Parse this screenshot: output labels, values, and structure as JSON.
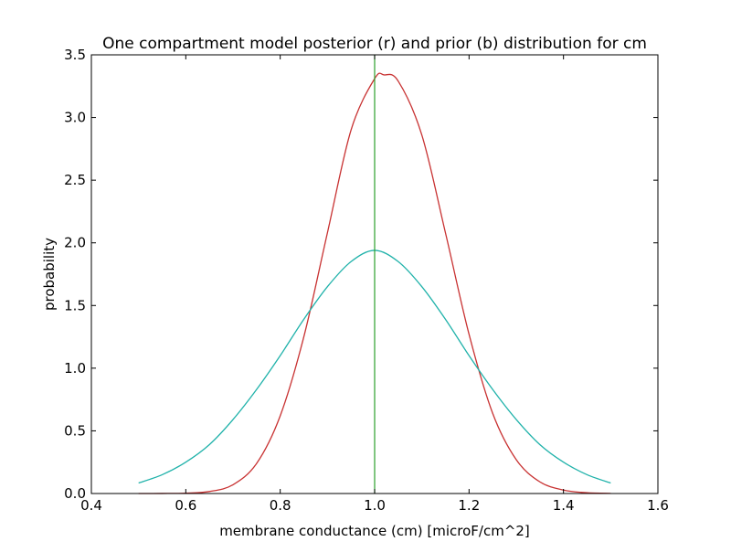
{
  "chart_data": {
    "type": "line",
    "title": "One compartment model posterior (r) and prior (b) distribution for cm",
    "xlabel": "membrane conductance (cm) [microF/cm^2]",
    "ylabel": "probability",
    "xlim": [
      0.4,
      1.6
    ],
    "ylim": [
      0.0,
      3.5
    ],
    "xticks": [
      0.4,
      0.6,
      0.8,
      1.0,
      1.2,
      1.4,
      1.6
    ],
    "xtick_labels": [
      "0.4",
      "0.6",
      "0.8",
      "1.0",
      "1.2",
      "1.4",
      "1.6"
    ],
    "yticks": [
      0.0,
      0.5,
      1.0,
      1.5,
      2.0,
      2.5,
      3.0,
      3.5
    ],
    "ytick_labels": [
      "0.0",
      "0.5",
      "1.0",
      "1.5",
      "2.0",
      "2.5",
      "3.0",
      "3.5"
    ],
    "grid": false,
    "legend": "none",
    "vline": {
      "x": 1.0,
      "color": "#2ca02c"
    },
    "series": [
      {
        "color": "#c83232",
        "x": [
          0.5,
          0.55,
          0.6,
          0.65,
          0.7,
          0.75,
          0.8,
          0.85,
          0.9,
          0.95,
          1.0,
          1.02,
          1.05,
          1.1,
          1.15,
          1.2,
          1.25,
          1.3,
          1.35,
          1.4,
          1.45,
          1.5
        ],
        "y": [
          0.0001,
          0.0005,
          0.003,
          0.016,
          0.07,
          0.24,
          0.62,
          1.25,
          2.08,
          2.9,
          3.31,
          3.34,
          3.29,
          2.86,
          2.08,
          1.27,
          0.64,
          0.27,
          0.093,
          0.027,
          0.006,
          0.0012
        ]
      },
      {
        "color": "#20b2aa",
        "x": [
          0.5,
          0.55,
          0.6,
          0.65,
          0.7,
          0.75,
          0.8,
          0.85,
          0.9,
          0.95,
          1.0,
          1.05,
          1.1,
          1.15,
          1.2,
          1.25,
          1.3,
          1.35,
          1.4,
          1.45,
          1.5
        ],
        "y": [
          0.084,
          0.15,
          0.25,
          0.39,
          0.59,
          0.83,
          1.1,
          1.39,
          1.65,
          1.85,
          1.94,
          1.85,
          1.65,
          1.39,
          1.1,
          0.83,
          0.59,
          0.39,
          0.25,
          0.15,
          0.084
        ]
      }
    ]
  }
}
